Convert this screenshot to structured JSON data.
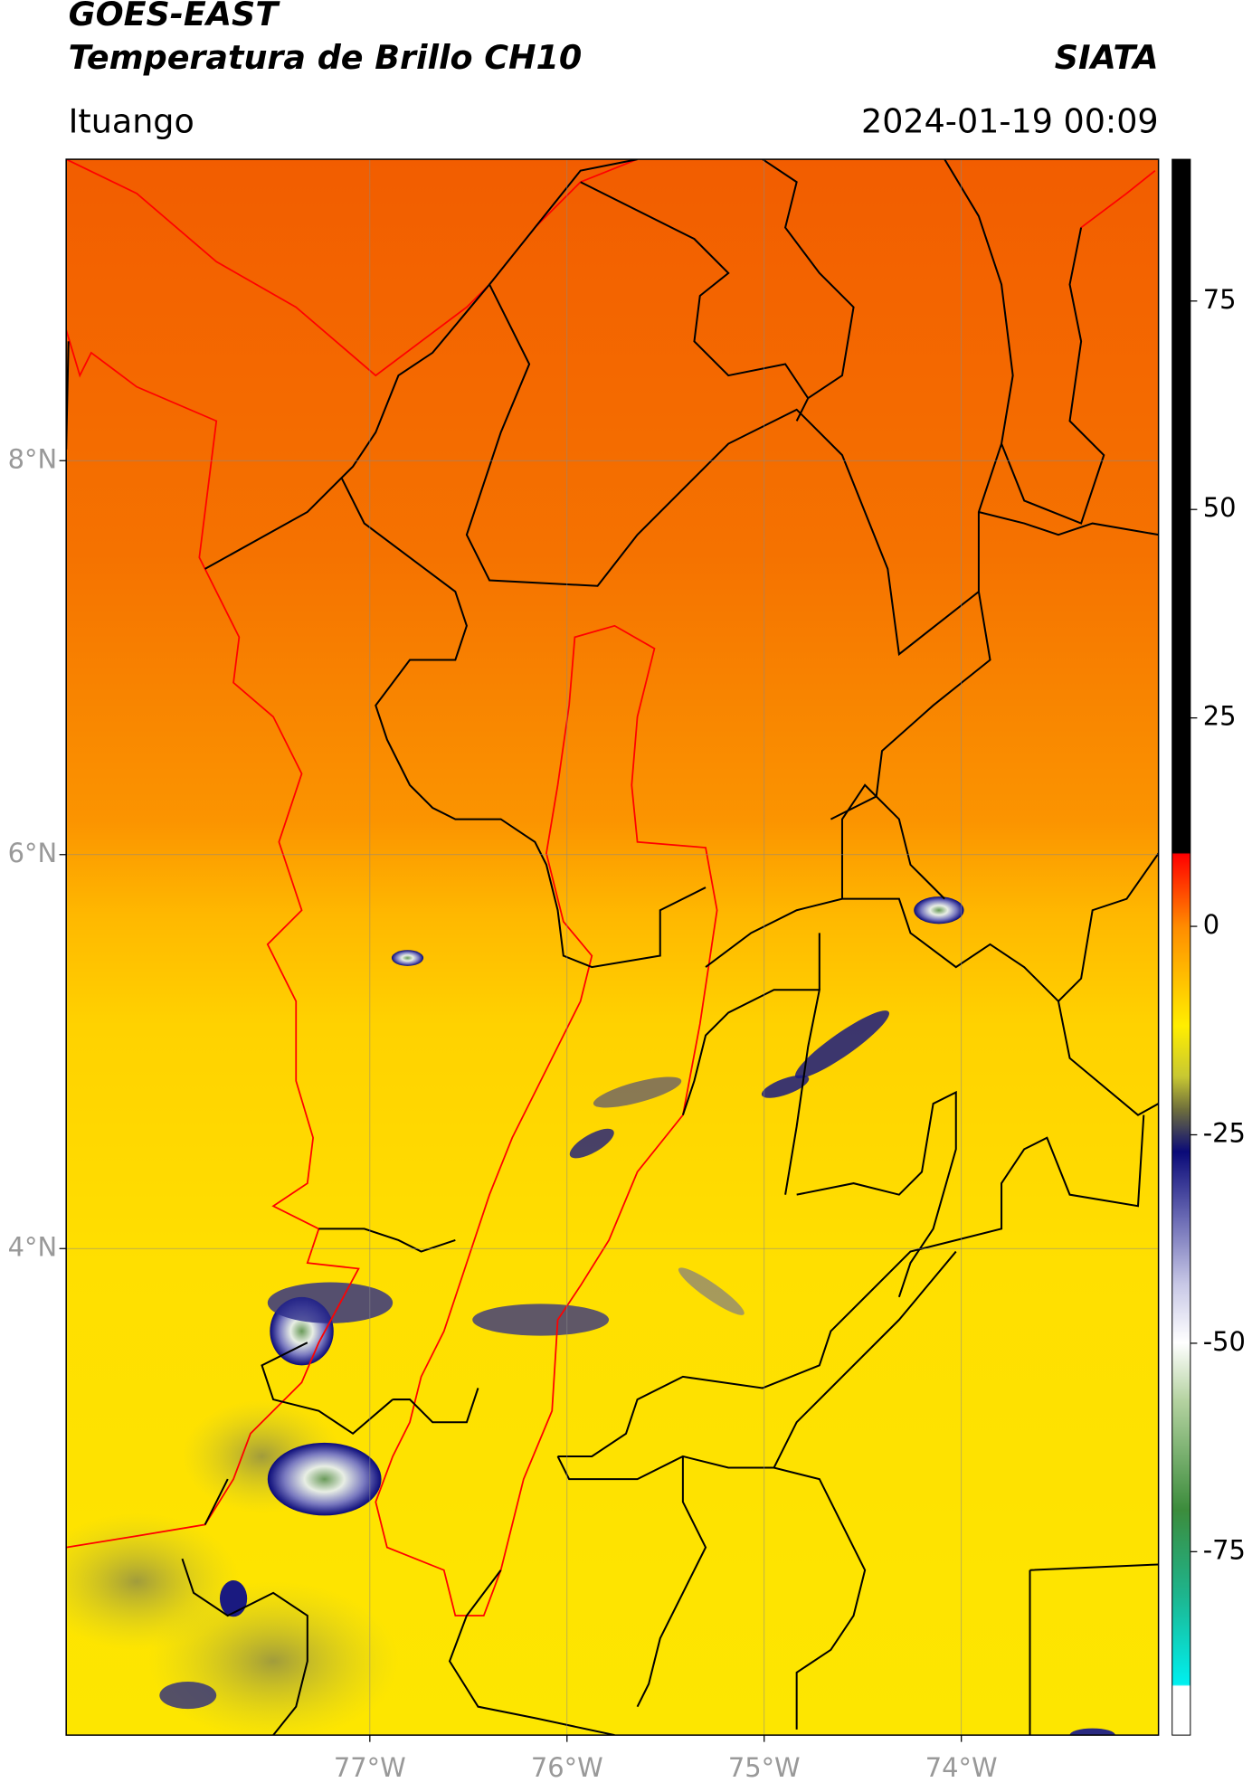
{
  "header": {
    "title": "GOES-EAST",
    "subtitle": "Temperatura de Brillo CH10",
    "agency": "SIATA",
    "location": "Ituango",
    "timestamp": "2024-01-19 00:09"
  },
  "map": {
    "xlim": [
      -78.54,
      -73.0
    ],
    "ylim": [
      1.53,
      9.53
    ],
    "grid": true,
    "xticks": [
      {
        "value": -77,
        "label": "77°W"
      },
      {
        "value": -76,
        "label": "76°W"
      },
      {
        "value": -75,
        "label": "75°W"
      },
      {
        "value": -74,
        "label": "74°W"
      }
    ],
    "yticks": [
      {
        "value": 8,
        "label": "8°N"
      },
      {
        "value": 6,
        "label": "6°N"
      },
      {
        "value": 4,
        "label": "4°N"
      }
    ]
  },
  "colorbar": {
    "lim": [
      -97,
      92
    ],
    "ticks": [
      75,
      50,
      25,
      0,
      -25,
      -50,
      -75
    ]
  }
}
